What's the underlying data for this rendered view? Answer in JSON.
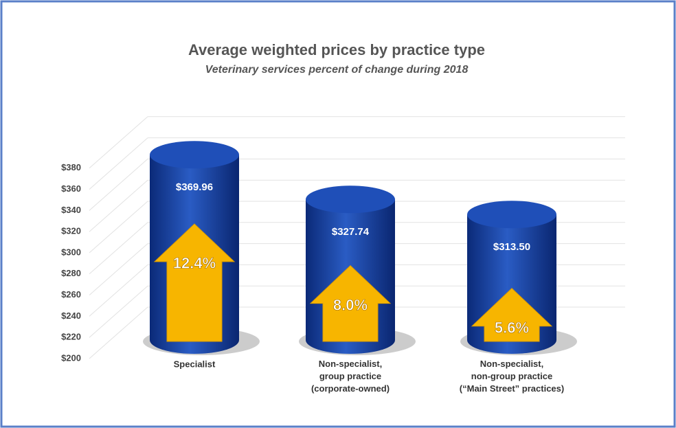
{
  "chart_data": {
    "type": "bar3d",
    "title": "Average weighted prices by practice type",
    "subtitle": "Veterinary services percent of change during 2018",
    "categories": [
      "Specialist",
      "Non-specialist,\ngroup practice\n(corporate-owned)",
      "Non-specialist,\nnon-group practice\n(“Main Street” practices)"
    ],
    "values": [
      369.96,
      327.74,
      313.5
    ],
    "value_labels": [
      "$369.96",
      "$327.74",
      "$313.50"
    ],
    "changes": [
      12.4,
      8.0,
      5.6
    ],
    "change_labels": [
      "12.4%",
      "8.0%",
      "5.6%"
    ],
    "color": "#1c47a6",
    "arrow_color": "#f7b500",
    "ylim": [
      200,
      380
    ],
    "yticks": [
      {
        "value": 200,
        "label": "$200"
      },
      {
        "value": 220,
        "label": "$220"
      },
      {
        "value": 240,
        "label": "$240"
      },
      {
        "value": 260,
        "label": "$260"
      },
      {
        "value": 280,
        "label": "$280"
      },
      {
        "value": 300,
        "label": "$300"
      },
      {
        "value": 320,
        "label": "$320"
      },
      {
        "value": 340,
        "label": "$340"
      },
      {
        "value": 360,
        "label": "$360"
      },
      {
        "value": 380,
        "label": "$380"
      }
    ],
    "grid": true
  }
}
